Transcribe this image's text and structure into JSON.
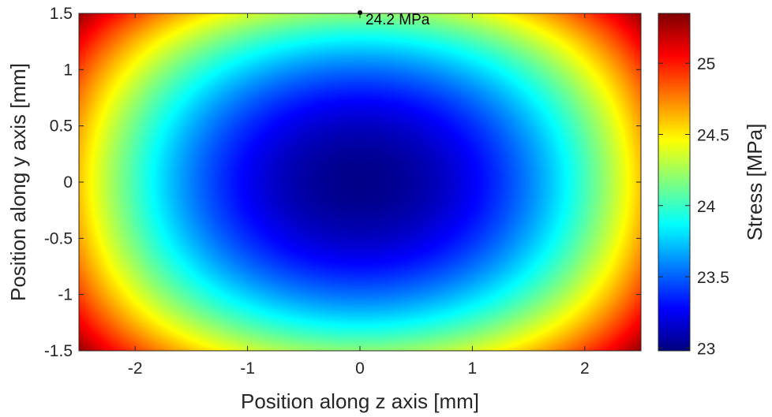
{
  "chart_data": {
    "type": "heatmap",
    "title": "",
    "xlabel": "Position along z axis [mm]",
    "ylabel": "Position along y axis [mm]",
    "xlim": [
      -2.5,
      2.5
    ],
    "ylim": [
      -1.5,
      1.5
    ],
    "x_ticks": [
      -2,
      -1,
      0,
      1,
      2
    ],
    "x_tick_labels": [
      "-2",
      "-1",
      "0",
      "1",
      "2"
    ],
    "y_ticks": [
      1.5,
      1,
      0.5,
      0,
      -0.5,
      -1,
      -1.5
    ],
    "y_tick_labels": [
      "1.5",
      "1",
      "0.5",
      "0",
      "-0.5",
      "-1",
      "-1.5"
    ],
    "grid": false,
    "colormap": "jet",
    "field": {
      "description_center": [
        0.0,
        0.0
      ],
      "min_value": 23.0,
      "value_at_x_edge_center": 24.6,
      "value_at_y_edge_center": 24.2,
      "value_at_corner": 25.3
    },
    "colorbar": {
      "label": "Stress [MPa]",
      "range": [
        22.98,
        25.35
      ],
      "ticks": [
        25,
        24.5,
        24,
        23.5,
        23
      ],
      "tick_labels": [
        "25",
        "24.5",
        "24",
        "23.5",
        "23"
      ]
    },
    "annotations": [
      {
        "x": 0.0,
        "y": 1.5,
        "text": "24.2 MPa",
        "marker": "dot"
      }
    ]
  }
}
